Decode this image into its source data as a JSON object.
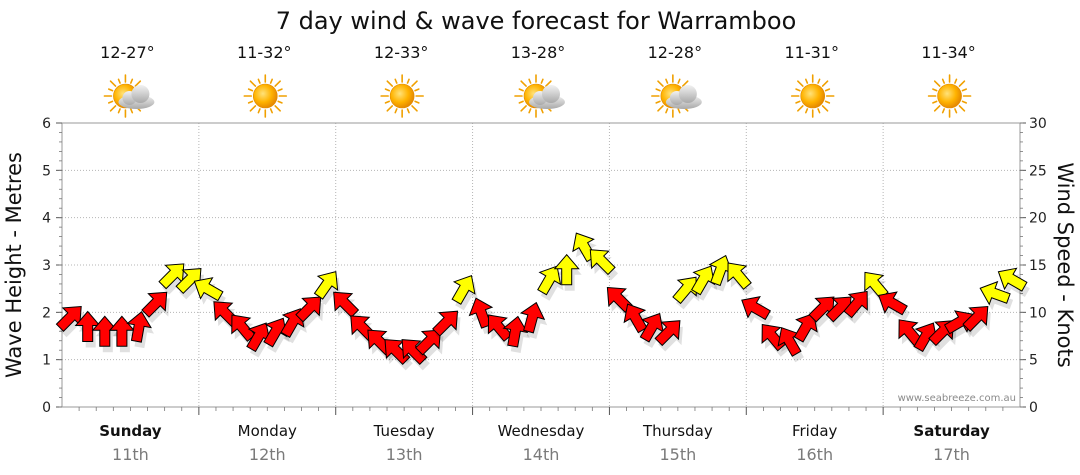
{
  "chart_data": {
    "type": "line",
    "title": "7 day wind & wave forecast for Warramboo",
    "ylabel_left": "Wave Height - Metres",
    "ylabel_right": "Wind Speed - Knots",
    "ylim_left": [
      0,
      6
    ],
    "ylim_right": [
      0,
      30
    ],
    "yticks_left": [
      "0",
      "1",
      "2",
      "3",
      "4",
      "5",
      "6"
    ],
    "yticks_right": [
      "0",
      "5",
      "10",
      "15",
      "20",
      "25",
      "30"
    ],
    "grid": true,
    "days": [
      {
        "day": "Sunday",
        "date": "11th",
        "bold": true,
        "temp": "12-27°",
        "weather": "partly-cloudy"
      },
      {
        "day": "Monday",
        "date": "12th",
        "bold": false,
        "temp": "11-32°",
        "weather": "sunny"
      },
      {
        "day": "Tuesday",
        "date": "13th",
        "bold": false,
        "temp": "12-33°",
        "weather": "sunny"
      },
      {
        "day": "Wednesday",
        "date": "14th",
        "bold": false,
        "temp": "13-28°",
        "weather": "partly-cloudy"
      },
      {
        "day": "Thursday",
        "date": "15th",
        "bold": false,
        "temp": "12-28°",
        "weather": "partly-cloudy"
      },
      {
        "day": "Friday",
        "date": "16th",
        "bold": false,
        "temp": "11-31°",
        "weather": "sunny"
      },
      {
        "day": "Saturday",
        "date": "17th",
        "bold": true,
        "temp": "11-34°",
        "weather": "sunny"
      }
    ],
    "series": [
      {
        "name": "Wind Speed",
        "unit": "knots",
        "points_per_day": 8,
        "values": [
          9.5,
          8.5,
          8.0,
          8.0,
          8.5,
          11.0,
          14.0,
          13.5,
          12.5,
          10.0,
          8.5,
          7.5,
          8.0,
          9.0,
          10.5,
          13.0,
          11.0,
          8.5,
          7.0,
          6.0,
          6.0,
          7.0,
          9.0,
          12.5,
          10.0,
          8.5,
          8.0,
          9.5,
          13.5,
          14.5,
          17.0,
          15.5,
          11.5,
          9.5,
          8.5,
          8.0,
          12.5,
          13.5,
          14.5,
          14.0,
          10.5,
          7.5,
          7.0,
          8.5,
          10.5,
          10.5,
          11.0,
          13.0,
          11.0,
          8.0,
          7.5,
          8.0,
          9.0,
          9.5,
          12.0,
          13.5
        ],
        "directions": [
          45,
          0,
          0,
          0,
          10,
          45,
          45,
          45,
          300,
          315,
          320,
          30,
          30,
          30,
          45,
          35,
          315,
          315,
          315,
          315,
          315,
          45,
          45,
          30,
          340,
          320,
          10,
          15,
          30,
          0,
          330,
          315,
          315,
          330,
          30,
          45,
          40,
          30,
          20,
          320,
          300,
          320,
          330,
          30,
          45,
          45,
          40,
          320,
          300,
          320,
          30,
          45,
          60,
          45,
          290,
          300
        ],
        "color_strong": "#ffff00",
        "color_light": "#ff0000"
      }
    ],
    "watermark": "www.seabreeze.com.au"
  }
}
